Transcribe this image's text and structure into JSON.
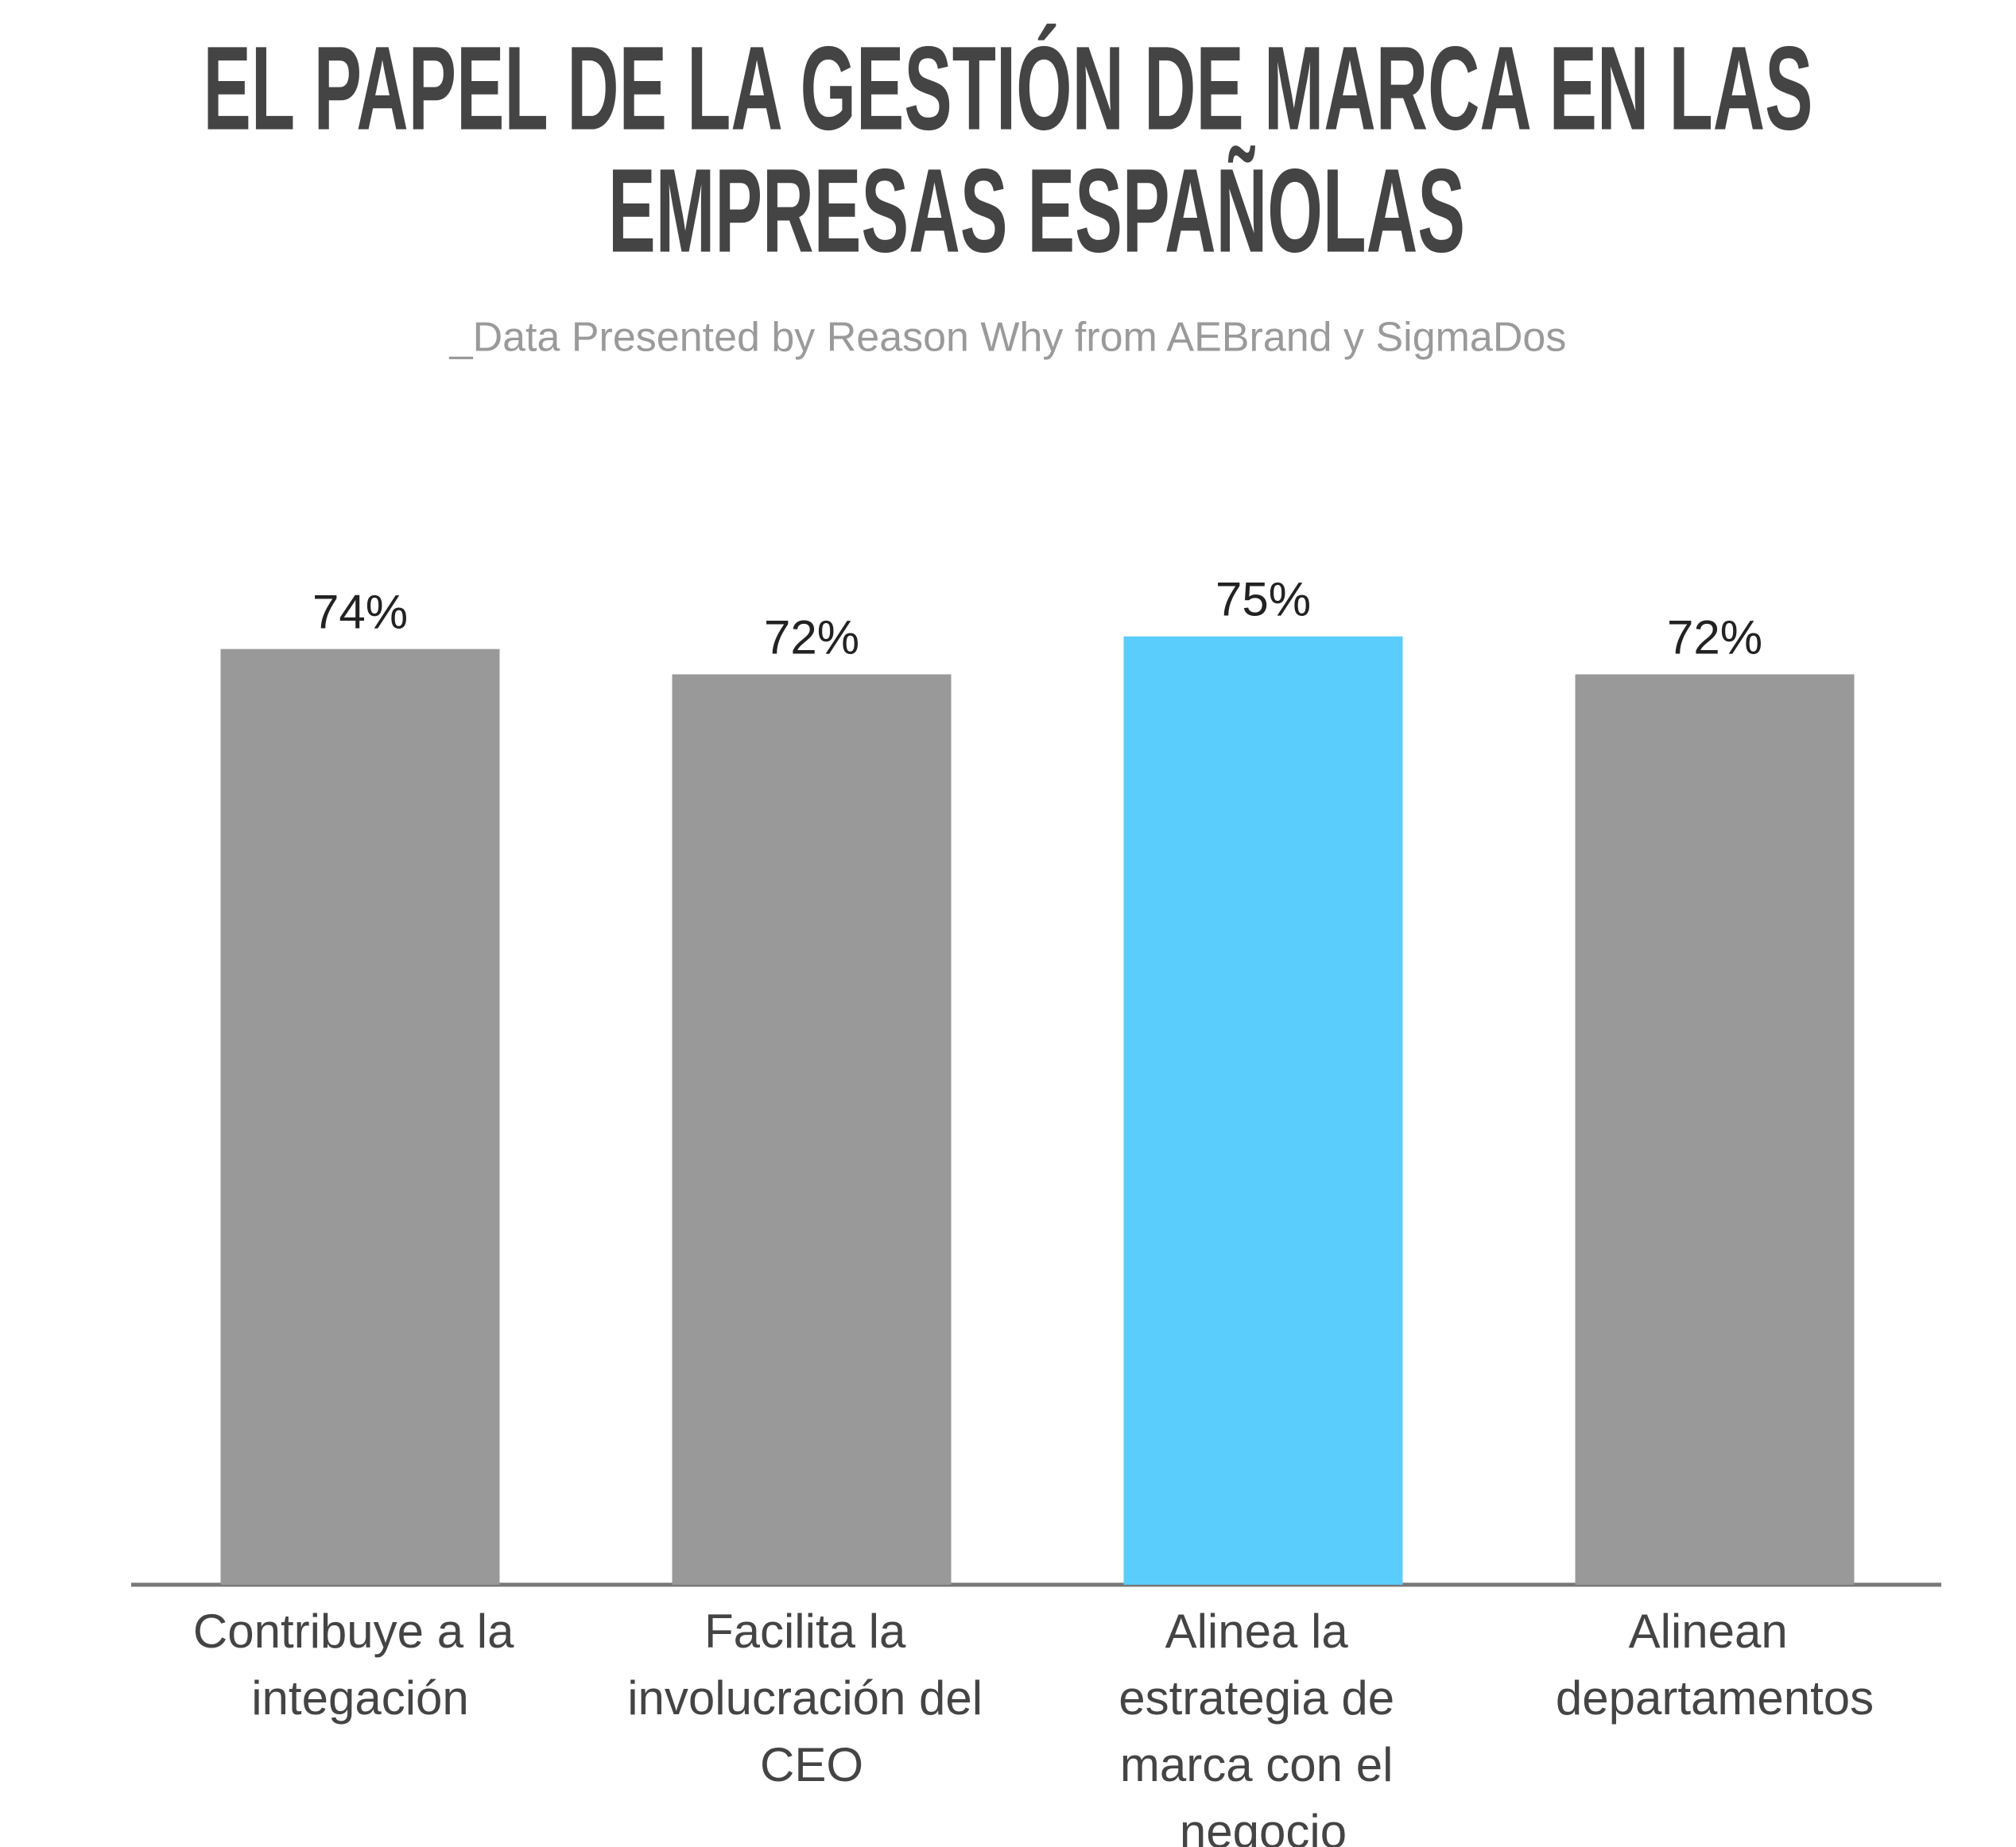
{
  "chart_data": {
    "type": "bar",
    "title": [
      "EL PAPEL DE LA GESTIÓN DE MARCA EN LAS",
      "EMPRESAS ESPAÑOLAS"
    ],
    "subtitle": "_Data Presented by Reason Why from AEBrand y SigmaDos",
    "categories": [
      "Contribuye a la integación",
      "Facilita la involucración del CEO",
      "Alinea la estrategia de marca con el negocio",
      "Alinean departamentos"
    ],
    "values": [
      74,
      72,
      75,
      72
    ],
    "value_labels": [
      "74%",
      "72%",
      "75%",
      "72%"
    ],
    "colors": [
      "#999999",
      "#999999",
      "#5bcdfd",
      "#999999"
    ],
    "ylim": [
      0,
      100
    ]
  }
}
